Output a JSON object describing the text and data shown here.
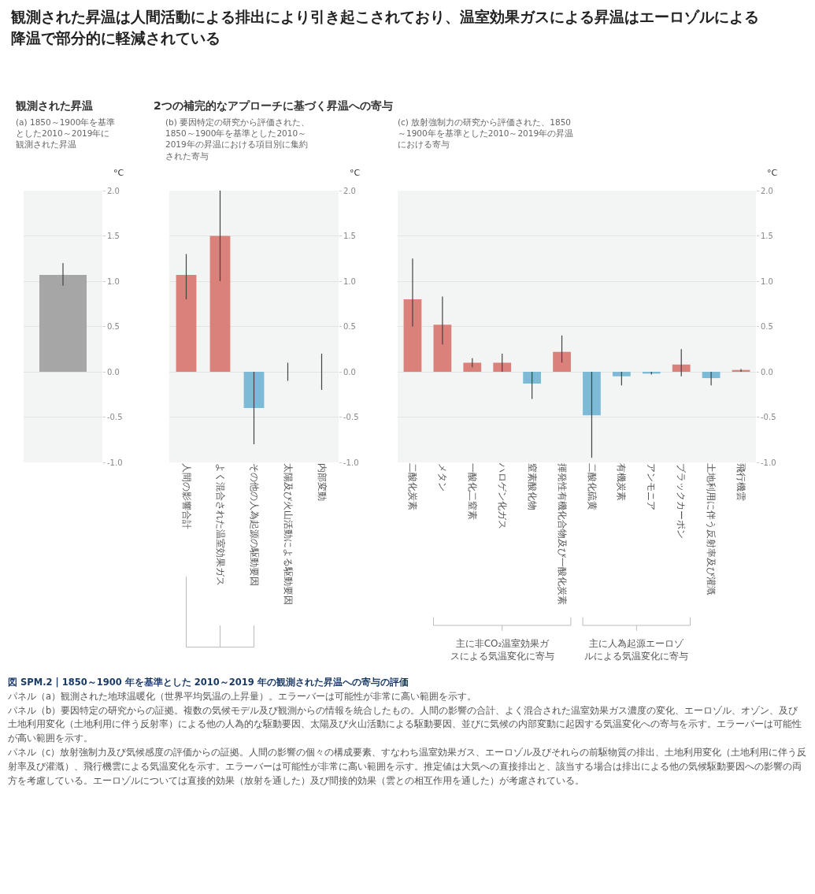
{
  "chart_data": [
    {
      "type": "bar",
      "title": "観測された昇温",
      "subtitle": "(a) 1850～1900年を基準とした2010～2019年に観測された昇温",
      "ylabel": "°C",
      "categories": [
        null
      ],
      "values": [
        1.07
      ],
      "colors": [
        "#a6a6a6"
      ],
      "errors": [
        [
          0.95,
          1.2
        ]
      ],
      "ylim": [
        -1,
        2
      ],
      "yticks": [
        {
          "value": -1,
          "label": "-1.0"
        },
        {
          "value": -0.5,
          "label": "-0.5"
        },
        {
          "value": 0,
          "label": "0.0"
        },
        {
          "value": 0.5,
          "label": "0.5"
        },
        {
          "value": 1,
          "label": "1.0"
        },
        {
          "value": 1.5,
          "label": "1.5"
        },
        {
          "value": 2,
          "label": "2.0"
        }
      ],
      "grid": "y",
      "annotations": [
        "観測された昇温は人間活動による排出により引き起こされており、温室効果ガスによる昇温はエーロゾルによる降温で部分的に軽減されている"
      ]
    },
    {
      "type": "bar",
      "title": "2つの補完的なアプローチに基づく昇温への寄与",
      "subtitle": "(b) 要因特定の研究から評価された、1850～1900年を基準とした2010～2019年の昇温における項目別に集約された寄与",
      "ylabel": "°C",
      "categories": [
        "人間の影響合計",
        "よく混合された温室効果ガス",
        "その他の人為起源の駆動要因",
        "太陽及び火山活動による駆動要因",
        "内部変動"
      ],
      "values": [
        1.07,
        1.5,
        -0.4,
        0,
        0
      ],
      "colors": [
        "#d9817a",
        "#d9817a",
        "#7cbad6",
        "#7cbad6",
        "#7cbad6"
      ],
      "errors": [
        [
          0.8,
          1.3
        ],
        [
          1.0,
          2.0
        ],
        [
          -0.8,
          0.0
        ],
        [
          -0.1,
          0.1
        ],
        [
          -0.2,
          0.2
        ]
      ],
      "ylim": [
        -1,
        2
      ],
      "yticks": [
        {
          "value": -1,
          "label": "-1.0"
        },
        {
          "value": -0.5,
          "label": "-0.5"
        },
        {
          "value": 0,
          "label": "0.0"
        },
        {
          "value": 0.5,
          "label": "0.5"
        },
        {
          "value": 1,
          "label": "1.0"
        },
        {
          "value": 1.5,
          "label": "1.5"
        },
        {
          "value": 2,
          "label": "2.0"
        }
      ],
      "grid": "y"
    },
    {
      "type": "bar",
      "subtitle": "(c) 放射強制力の研究から評価された、1850～1900年を基準とした2010～2019年の昇温における寄与",
      "ylabel": "°C",
      "categories": [
        "二酸化炭素",
        "メタン",
        "一酸化二窒素",
        "ハロゲン化ガス",
        "窒素酸化物",
        "揮発性有機化合物及び一酸化炭素",
        "二酸化硫黄",
        "有機炭素",
        "アンモニア",
        "ブラックカーボン",
        "土地利用に伴う反射率及び灌漑",
        "飛行機雲"
      ],
      "values": [
        0.8,
        0.52,
        0.1,
        0.1,
        -0.13,
        0.22,
        -0.48,
        -0.05,
        -0.02,
        0.08,
        -0.07,
        0.02
      ],
      "colors": [
        "#d9817a",
        "#d9817a",
        "#d9817a",
        "#d9817a",
        "#7cbad6",
        "#d9817a",
        "#7cbad6",
        "#7cbad6",
        "#7cbad6",
        "#d9817a",
        "#7cbad6",
        "#d9817a"
      ],
      "errors": [
        [
          0.5,
          1.25
        ],
        [
          0.3,
          0.83
        ],
        [
          0.05,
          0.15
        ],
        [
          0.0,
          0.2
        ],
        [
          -0.3,
          0.0
        ],
        [
          0.1,
          0.4
        ],
        [
          -0.95,
          0.0
        ],
        [
          -0.15,
          0.0
        ],
        [
          -0.03,
          0.0
        ],
        [
          -0.05,
          0.25
        ],
        [
          -0.15,
          0.0
        ],
        [
          0.0,
          0.03
        ]
      ],
      "ylim": [
        -1,
        2
      ],
      "yticks": [
        {
          "value": -1,
          "label": "-1.0"
        },
        {
          "value": -0.5,
          "label": "-0.5"
        },
        {
          "value": 0,
          "label": "0.0"
        },
        {
          "value": 0.5,
          "label": "0.5"
        },
        {
          "value": 1,
          "label": "1.0"
        },
        {
          "value": 1.5,
          "label": "1.5"
        },
        {
          "value": 2,
          "label": "2.0"
        }
      ],
      "grid": "y",
      "annotations": [
        "主に非CO₂温室効果ガスによる気温変化に寄与",
        "主に人為起源エーロゾルによる気温変化に寄与",
        "図 SPM.2 | 1850～1900 年を基準とした 2010～2019 年の観測された昇温への寄与の評価",
        "パネル（a）観測された地球温暖化（世界平均気温の上昇量）。エラーバーは可能性が非常に高い範囲を示す。",
        "パネル（b）要因特定の研究からの証拠。複数の気候モデル及び観測からの情報を統合したもの。人間の影響の合計、よく混合された温室効果ガス濃度の変化、エーロゾル、オゾン、及び土地利用変化（土地利用に伴う反射率）による他の人為的な駆動要因、太陽及び火山活動による駆動要因、並びに気候の内部変動に起因する気温変化への寄与を示す。エラーバーは可能性が高い範囲を示す。",
        "パネル（c）放射強制力及び気候感度の評価からの証拠。人間の影響の個々の構成要素、すなわち温室効果ガス、エーロゾル及びそれらの前駆物質の排出、土地利用変化（土地利用に伴う反射率及び灌漑）、飛行機雲による気温変化を示す。エラーバーは可能性が非常に高い範囲を示す。推定値は大気への直接排出と、該当する場合は排出による他の気候駆動要因への影響の両方を考慮している。エーロゾルについては直接的効果（放射を通した）及び間接的効果（雲との相互作用を通した）が考慮されている。"
      ]
    }
  ]
}
